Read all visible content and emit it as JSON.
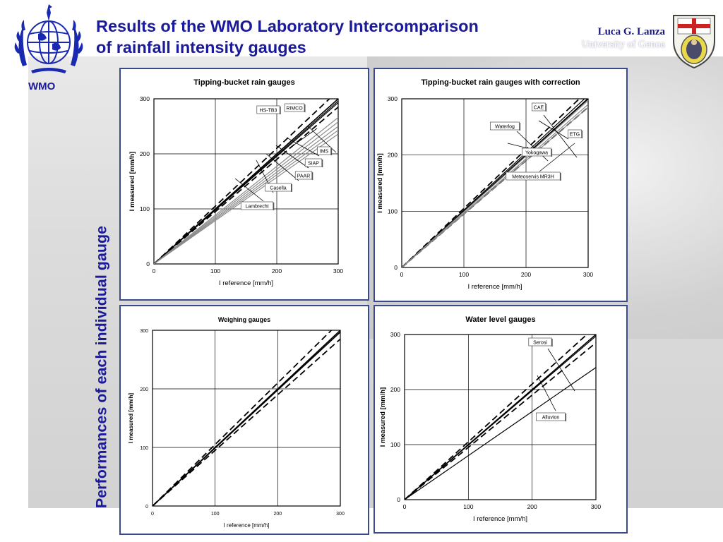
{
  "header": {
    "title_line1": "Results of the WMO Laboratory Intercomparison",
    "title_line2": "of rainfall intensity gauges",
    "author_name": "Luca G. Lanza",
    "author_affiliation": "University of Genoa",
    "org_label": "WMO"
  },
  "side_title": "Performances of each individual gauge",
  "icons": {
    "left_logo": "wmo-emblem-icon",
    "right_logo": "university-of-genoa-crest-icon"
  },
  "colors": {
    "title_blue": "#1a1a9a",
    "panel_border": "#3a4a8a",
    "gray_series": "#8c8c8c"
  },
  "chart_data": [
    {
      "type": "line",
      "title": "Tipping-bucket rain gauges",
      "xlabel": "I reference [mm/h]",
      "ylabel": "I measured [mm/h]",
      "xlim": [
        0,
        300
      ],
      "ylim": [
        0,
        300
      ],
      "xticks": [
        0,
        100,
        200,
        300
      ],
      "yticks": [
        0,
        100,
        200,
        300
      ],
      "grid": true,
      "series": [
        {
          "style": "dashed",
          "x": [
            0,
            300
          ],
          "y": [
            0,
            315
          ]
        },
        {
          "style": "dashed",
          "x": [
            0,
            300
          ],
          "y": [
            0,
            285
          ]
        },
        {
          "style": "solid",
          "x": [
            0,
            300
          ],
          "y": [
            0,
            300
          ]
        },
        {
          "name": "HS-TB3",
          "style": "black",
          "x": [
            0,
            300
          ],
          "y": [
            0,
            296
          ]
        },
        {
          "name": "RIMCO",
          "style": "black",
          "x": [
            0,
            300
          ],
          "y": [
            0,
            293
          ]
        },
        {
          "name": "IMS",
          "style": "gray",
          "x": [
            0,
            300
          ],
          "y": [
            0,
            266
          ]
        },
        {
          "name": "SIAP",
          "style": "gray",
          "x": [
            0,
            300
          ],
          "y": [
            0,
            258
          ]
        },
        {
          "name": "PAAR",
          "style": "gray",
          "x": [
            0,
            300
          ],
          "y": [
            0,
            250
          ]
        },
        {
          "name": "Casella",
          "style": "gray",
          "x": [
            0,
            300
          ],
          "y": [
            0,
            243
          ]
        },
        {
          "name": "Lambrecht",
          "style": "gray",
          "x": [
            0,
            300
          ],
          "y": [
            0,
            236
          ]
        }
      ],
      "annotations": [
        {
          "text": "RIMCO",
          "x": 0,
          "y": 0
        },
        {
          "text": "HS-TB3",
          "x": 0,
          "y": 0
        },
        {
          "text": "IMS",
          "x": 0,
          "y": 0
        },
        {
          "text": "SIAP",
          "x": 0,
          "y": 0
        },
        {
          "text": "PAAR",
          "x": 0,
          "y": 0
        },
        {
          "text": "Casella",
          "x": 0,
          "y": 0
        },
        {
          "text": "Lambrecht",
          "x": 0,
          "y": 0
        }
      ]
    },
    {
      "type": "line",
      "title": "Tipping-bucket rain gauges with correction",
      "xlabel": "I reference [mm/h]",
      "ylabel": "I measured [mm/h]",
      "xlim": [
        0,
        300
      ],
      "ylim": [
        0,
        300
      ],
      "xticks": [
        0,
        100,
        200,
        300
      ],
      "yticks": [
        0,
        100,
        200,
        300
      ],
      "grid": true,
      "series": [
        {
          "style": "dashed",
          "x": [
            0,
            300
          ],
          "y": [
            0,
            315
          ]
        },
        {
          "style": "dashed",
          "x": [
            0,
            300
          ],
          "y": [
            0,
            285
          ]
        },
        {
          "style": "solid",
          "x": [
            0,
            300
          ],
          "y": [
            0,
            300
          ]
        },
        {
          "name": "CAE",
          "style": "black",
          "x": [
            0,
            300
          ],
          "y": [
            0,
            306
          ]
        },
        {
          "name": "Waterlog",
          "style": "black",
          "x": [
            0,
            300
          ],
          "y": [
            0,
            301
          ]
        },
        {
          "name": "ETG",
          "style": "gray",
          "x": [
            0,
            300
          ],
          "y": [
            0,
            297
          ]
        },
        {
          "name": "Yokogawa",
          "style": "gray",
          "x": [
            0,
            300
          ],
          "y": [
            0,
            290
          ]
        },
        {
          "name": "Meteoservis MR3H",
          "style": "gray",
          "x": [
            0,
            300
          ],
          "y": [
            0,
            285
          ]
        }
      ]
    },
    {
      "type": "line",
      "title": "Weighing gauges",
      "xlabel": "I reference [mm/h]",
      "ylabel": "I measured [mm/h]",
      "xlim": [
        0,
        300
      ],
      "ylim": [
        0,
        300
      ],
      "xticks": [
        0,
        100,
        200,
        300
      ],
      "yticks": [
        0,
        100,
        200,
        300
      ],
      "grid": true,
      "series": [
        {
          "style": "dashed",
          "x": [
            0,
            300
          ],
          "y": [
            0,
            315
          ]
        },
        {
          "style": "dashed",
          "x": [
            0,
            300
          ],
          "y": [
            0,
            285
          ]
        },
        {
          "style": "solid",
          "x": [
            0,
            300
          ],
          "y": [
            0,
            300
          ]
        },
        {
          "style": "solid",
          "x": [
            0,
            300
          ],
          "y": [
            0,
            297
          ]
        }
      ]
    },
    {
      "type": "line",
      "title": "Water level gauges",
      "xlabel": "I reference [mm/h]",
      "ylabel": "I measured [mm/h]",
      "xlim": [
        0,
        300
      ],
      "ylim": [
        0,
        300
      ],
      "xticks": [
        0,
        100,
        200,
        300
      ],
      "yticks": [
        0,
        100,
        200,
        300
      ],
      "grid": true,
      "series": [
        {
          "style": "dashed",
          "x": [
            0,
            300
          ],
          "y": [
            0,
            315
          ]
        },
        {
          "style": "dashed",
          "x": [
            0,
            300
          ],
          "y": [
            0,
            285
          ]
        },
        {
          "style": "solid",
          "x": [
            0,
            300
          ],
          "y": [
            0,
            300
          ]
        },
        {
          "name": "Serosi",
          "style": "black",
          "x": [
            0,
            300
          ],
          "y": [
            0,
            297
          ]
        },
        {
          "name": "Alluvion",
          "style": "black",
          "x": [
            0,
            300
          ],
          "y": [
            0,
            240
          ]
        }
      ]
    }
  ]
}
